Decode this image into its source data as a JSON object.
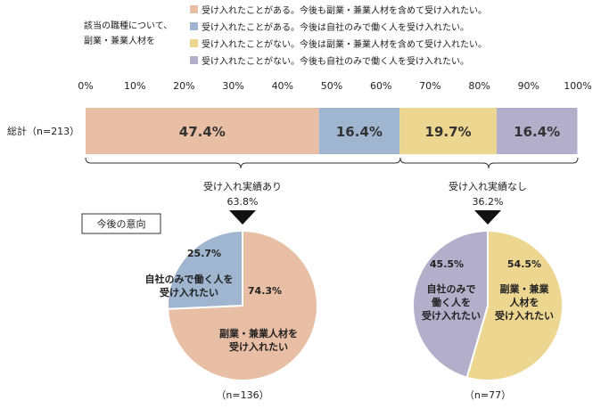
{
  "chart_data": [
    {
      "type": "bar",
      "orientation": "horizontal-stacked",
      "legend_title": [
        "該当の職種について、",
        "副業・兼業人材を"
      ],
      "categories": [
        "総計（n=213）"
      ],
      "x_ticks": [
        "0%",
        "10%",
        "20%",
        "30%",
        "40%",
        "50%",
        "60%",
        "70%",
        "80%",
        "90%",
        "100%"
      ],
      "xlim": [
        0,
        100
      ],
      "legend_placement": "top",
      "series": [
        {
          "name": "受け入れたことがある。今後も副業・兼業人材を含めて受け入れたい。",
          "values": [
            47.4
          ],
          "label": "47.4%",
          "color": "#E8BEA4"
        },
        {
          "name": "受け入れたことがある。今後は自社のみで働く人を受け入れたい。",
          "values": [
            16.4
          ],
          "label": "16.4%",
          "color": "#9FB5D0"
        },
        {
          "name": "受け入れたことがない。今後は副業・兼業人材を含めて受け入れたい。",
          "values": [
            19.7
          ],
          "label": "19.7%",
          "color": "#EDD690"
        },
        {
          "name": "受け入れたことがない。今後も自社のみで働く人を受け入れたい。",
          "values": [
            16.4
          ],
          "label": "16.4%",
          "color": "#B3AECA"
        }
      ]
    },
    {
      "type": "pie",
      "group_label": "受け入れ実績あり",
      "group_share": "63.8%",
      "n_label": "（n=136）",
      "slices": [
        {
          "value": 74.3,
          "pct_label": "74.3%",
          "lines": [
            "副業・兼業人材を",
            "受け入れたい"
          ],
          "color": "#E8BEA4"
        },
        {
          "value": 25.7,
          "pct_label": "25.7%",
          "lines": [
            "自社のみで働く人を",
            "受け入れたい"
          ],
          "color": "#9FB5D0"
        }
      ]
    },
    {
      "type": "pie",
      "group_label": "受け入れ実績なし",
      "group_share": "36.2%",
      "n_label": "（n=77）",
      "slices": [
        {
          "value": 54.5,
          "pct_label": "54.5%",
          "lines": [
            "副業・兼業",
            "人材を",
            "受け入れたい"
          ],
          "color": "#EDD690"
        },
        {
          "value": 45.5,
          "pct_label": "45.5%",
          "lines": [
            "自社のみで",
            "働く人を",
            "受け入れたい"
          ],
          "color": "#B3AECA"
        }
      ]
    }
  ],
  "intention_box_label": "今後の意向"
}
